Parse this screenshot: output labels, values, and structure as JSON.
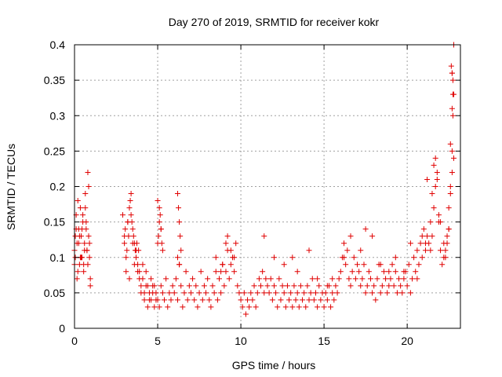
{
  "chart_data": {
    "type": "scatter",
    "title": "Day 270 of 2019, SRMTID for receiver kokr",
    "xlabel": "GPS time / hours",
    "ylabel": "SRMTID / TECUs",
    "xlim": [
      0,
      23.2
    ],
    "ylim": [
      0,
      0.4
    ],
    "xticks": [
      0,
      5,
      10,
      15,
      20
    ],
    "yticks": [
      0,
      0.05,
      0.1,
      0.15,
      0.2,
      0.25,
      0.3,
      0.35,
      0.4
    ],
    "grid": true,
    "marker": "+",
    "marker_color": "#e00000",
    "series": [
      {
        "name": "SRMTID",
        "note": "dense point cloud; values are representative samples read from the plot",
        "x": [
          0.0,
          0.05,
          0.1,
          0.15,
          0.2,
          0.25,
          0.3,
          0.35,
          0.4,
          0.45,
          0.5,
          0.55,
          0.6,
          0.65,
          0.7,
          0.75,
          0.8,
          0.85,
          0.9,
          0.95,
          0.0,
          0.1,
          0.2,
          0.3,
          0.4,
          0.5,
          0.6,
          0.7,
          0.8,
          0.9,
          0.05,
          0.15,
          0.25,
          0.35,
          0.45,
          0.55,
          0.65,
          0.75,
          0.85,
          0.95,
          2.9,
          3.0,
          3.05,
          3.1,
          3.15,
          3.2,
          3.25,
          3.3,
          3.35,
          3.4,
          3.45,
          3.5,
          3.55,
          3.6,
          3.65,
          3.7,
          3.75,
          3.8,
          3.85,
          3.9,
          3.0,
          3.1,
          3.2,
          3.3,
          3.4,
          3.5,
          3.6,
          3.7,
          3.8,
          3.9,
          4.0,
          4.1,
          4.2,
          4.3,
          4.4,
          4.5,
          4.6,
          4.7,
          4.8,
          4.9,
          4.0,
          4.1,
          4.2,
          4.3,
          4.4,
          4.5,
          4.6,
          4.7,
          4.8,
          4.9,
          5.0,
          5.1,
          5.2,
          5.3,
          5.4,
          5.5,
          5.6,
          5.7,
          5.8,
          5.9,
          5.0,
          5.05,
          5.1,
          5.15,
          5.2,
          5.25,
          5.3,
          5.0,
          5.1,
          5.2,
          6.0,
          6.1,
          6.2,
          6.3,
          6.4,
          6.5,
          6.6,
          6.7,
          6.8,
          6.9,
          6.2,
          6.25,
          6.3,
          6.35,
          6.4,
          6.3,
          6.2,
          7.0,
          7.1,
          7.2,
          7.3,
          7.4,
          7.5,
          7.6,
          7.7,
          7.8,
          7.9,
          8.0,
          8.1,
          8.2,
          8.3,
          8.4,
          8.5,
          8.6,
          8.7,
          8.8,
          8.9,
          9.0,
          9.1,
          9.2,
          9.3,
          9.4,
          9.5,
          9.6,
          9.7,
          9.8,
          9.9,
          8.5,
          8.8,
          9.1,
          9.4,
          9.6,
          9.2,
          8.9,
          10.0,
          10.1,
          10.2,
          10.3,
          10.4,
          10.5,
          10.6,
          10.7,
          10.8,
          10.9,
          11.0,
          11.1,
          11.2,
          11.3,
          11.4,
          11.5,
          11.6,
          11.7,
          11.8,
          11.9,
          12.0,
          12.1,
          12.2,
          12.3,
          12.4,
          12.5,
          12.6,
          12.7,
          12.8,
          12.9,
          13.0,
          13.1,
          13.2,
          13.3,
          13.4,
          13.5,
          13.6,
          13.7,
          13.8,
          13.9,
          14.0,
          14.1,
          14.2,
          14.3,
          14.4,
          14.5,
          14.6,
          14.7,
          14.8,
          14.9,
          15.0,
          15.1,
          15.2,
          15.3,
          15.4,
          15.5,
          15.6,
          15.7,
          15.8,
          15.9,
          16.0,
          16.1,
          16.2,
          16.3,
          16.4,
          16.5,
          16.6,
          16.7,
          16.8,
          16.9,
          17.0,
          17.1,
          17.2,
          17.3,
          17.4,
          17.5,
          17.6,
          17.7,
          17.8,
          17.9,
          18.0,
          18.1,
          18.2,
          18.3,
          18.4,
          18.5,
          18.6,
          18.7,
          18.8,
          18.9,
          19.0,
          19.1,
          19.2,
          19.3,
          19.4,
          19.5,
          19.6,
          19.7,
          19.8,
          19.9,
          20.0,
          20.1,
          20.2,
          20.3,
          20.4,
          20.5,
          20.6,
          20.7,
          20.8,
          20.9,
          21.0,
          21.1,
          21.2,
          21.3,
          21.4,
          21.5,
          21.6,
          21.7,
          21.8,
          21.9,
          22.0,
          22.1,
          22.2,
          22.3,
          22.4,
          22.5,
          22.6,
          22.7,
          22.75,
          22.8,
          22.7,
          22.65,
          22.75,
          22.7,
          22.8,
          22.6,
          11.4,
          13.1,
          14.1,
          15.5,
          16.6,
          17.5,
          18.9,
          20.2,
          21.2,
          21.6,
          21.7,
          21.8,
          21.5,
          21.9,
          22.5,
          22.6,
          22.7,
          22.8,
          22.75,
          22.7,
          12.0,
          12.6,
          13.4,
          14.6,
          15.2,
          16.2,
          17.2,
          17.9,
          18.4,
          19.3,
          19.8,
          20.6,
          20.9,
          21.1,
          21.4,
          22.0,
          22.2,
          22.4,
          22.5,
          22.3
        ],
        "y": [
          0.11,
          0.1,
          0.16,
          0.12,
          0.18,
          0.14,
          0.09,
          0.17,
          0.13,
          0.1,
          0.15,
          0.08,
          0.12,
          0.19,
          0.14,
          0.11,
          0.22,
          0.13,
          0.1,
          0.07,
          0.09,
          0.14,
          0.08,
          0.13,
          0.1,
          0.16,
          0.11,
          0.15,
          0.09,
          0.12,
          0.13,
          0.07,
          0.12,
          0.1,
          0.14,
          0.09,
          0.17,
          0.11,
          0.2,
          0.06,
          0.16,
          0.12,
          0.14,
          0.08,
          0.11,
          0.15,
          0.13,
          0.17,
          0.18,
          0.19,
          0.15,
          0.14,
          0.13,
          0.12,
          0.11,
          0.1,
          0.12,
          0.09,
          0.11,
          0.08,
          0.13,
          0.1,
          0.15,
          0.07,
          0.16,
          0.12,
          0.09,
          0.11,
          0.08,
          0.07,
          0.06,
          0.09,
          0.05,
          0.08,
          0.06,
          0.04,
          0.07,
          0.05,
          0.06,
          0.04,
          0.05,
          0.07,
          0.04,
          0.06,
          0.03,
          0.05,
          0.04,
          0.06,
          0.03,
          0.05,
          0.04,
          0.03,
          0.06,
          0.05,
          0.04,
          0.07,
          0.03,
          0.05,
          0.04,
          0.06,
          0.12,
          0.13,
          0.15,
          0.16,
          0.14,
          0.12,
          0.11,
          0.18,
          0.17,
          0.14,
          0.05,
          0.07,
          0.04,
          0.09,
          0.06,
          0.03,
          0.05,
          0.08,
          0.04,
          0.06,
          0.19,
          0.17,
          0.15,
          0.13,
          0.11,
          0.09,
          0.1,
          0.05,
          0.07,
          0.04,
          0.06,
          0.03,
          0.05,
          0.08,
          0.04,
          0.06,
          0.05,
          0.07,
          0.04,
          0.03,
          0.06,
          0.05,
          0.08,
          0.04,
          0.07,
          0.05,
          0.09,
          0.06,
          0.08,
          0.11,
          0.07,
          0.09,
          0.1,
          0.08,
          0.12,
          0.06,
          0.05,
          0.1,
          0.08,
          0.12,
          0.11,
          0.1,
          0.13,
          0.09,
          0.04,
          0.03,
          0.05,
          0.02,
          0.04,
          0.03,
          0.05,
          0.04,
          0.06,
          0.03,
          0.05,
          0.07,
          0.06,
          0.08,
          0.05,
          0.07,
          0.06,
          0.05,
          0.07,
          0.04,
          0.06,
          0.05,
          0.03,
          0.07,
          0.04,
          0.06,
          0.05,
          0.03,
          0.06,
          0.04,
          0.05,
          0.03,
          0.06,
          0.04,
          0.05,
          0.03,
          0.06,
          0.04,
          0.05,
          0.03,
          0.06,
          0.04,
          0.05,
          0.07,
          0.04,
          0.05,
          0.03,
          0.06,
          0.04,
          0.05,
          0.03,
          0.05,
          0.04,
          0.06,
          0.03,
          0.05,
          0.04,
          0.06,
          0.05,
          0.07,
          0.08,
          0.1,
          0.12,
          0.09,
          0.11,
          0.07,
          0.06,
          0.08,
          0.1,
          0.07,
          0.09,
          0.08,
          0.06,
          0.07,
          0.09,
          0.05,
          0.06,
          0.08,
          0.07,
          0.05,
          0.06,
          0.04,
          0.07,
          0.09,
          0.05,
          0.06,
          0.08,
          0.07,
          0.05,
          0.06,
          0.07,
          0.09,
          0.06,
          0.08,
          0.05,
          0.07,
          0.06,
          0.05,
          0.07,
          0.08,
          0.06,
          0.09,
          0.05,
          0.07,
          0.1,
          0.08,
          0.11,
          0.09,
          0.12,
          0.1,
          0.14,
          0.11,
          0.13,
          0.12,
          0.15,
          0.13,
          0.17,
          0.2,
          0.22,
          0.16,
          0.11,
          0.09,
          0.12,
          0.1,
          0.13,
          0.14,
          0.2,
          0.25,
          0.3,
          0.33,
          0.36,
          0.37,
          0.35,
          0.31,
          0.4,
          0.26,
          0.13,
          0.1,
          0.11,
          0.07,
          0.13,
          0.14,
          0.08,
          0.12,
          0.21,
          0.23,
          0.24,
          0.21,
          0.19,
          0.15,
          0.17,
          0.19,
          0.22,
          0.24,
          0.33,
          0.36,
          0.1,
          0.09,
          0.08,
          0.07,
          0.06,
          0.1,
          0.11,
          0.13,
          0.09,
          0.1,
          0.08,
          0.07,
          0.13,
          0.12,
          0.11,
          0.15,
          0.1,
          0.12,
          0.14,
          0.11
        ]
      }
    ]
  }
}
